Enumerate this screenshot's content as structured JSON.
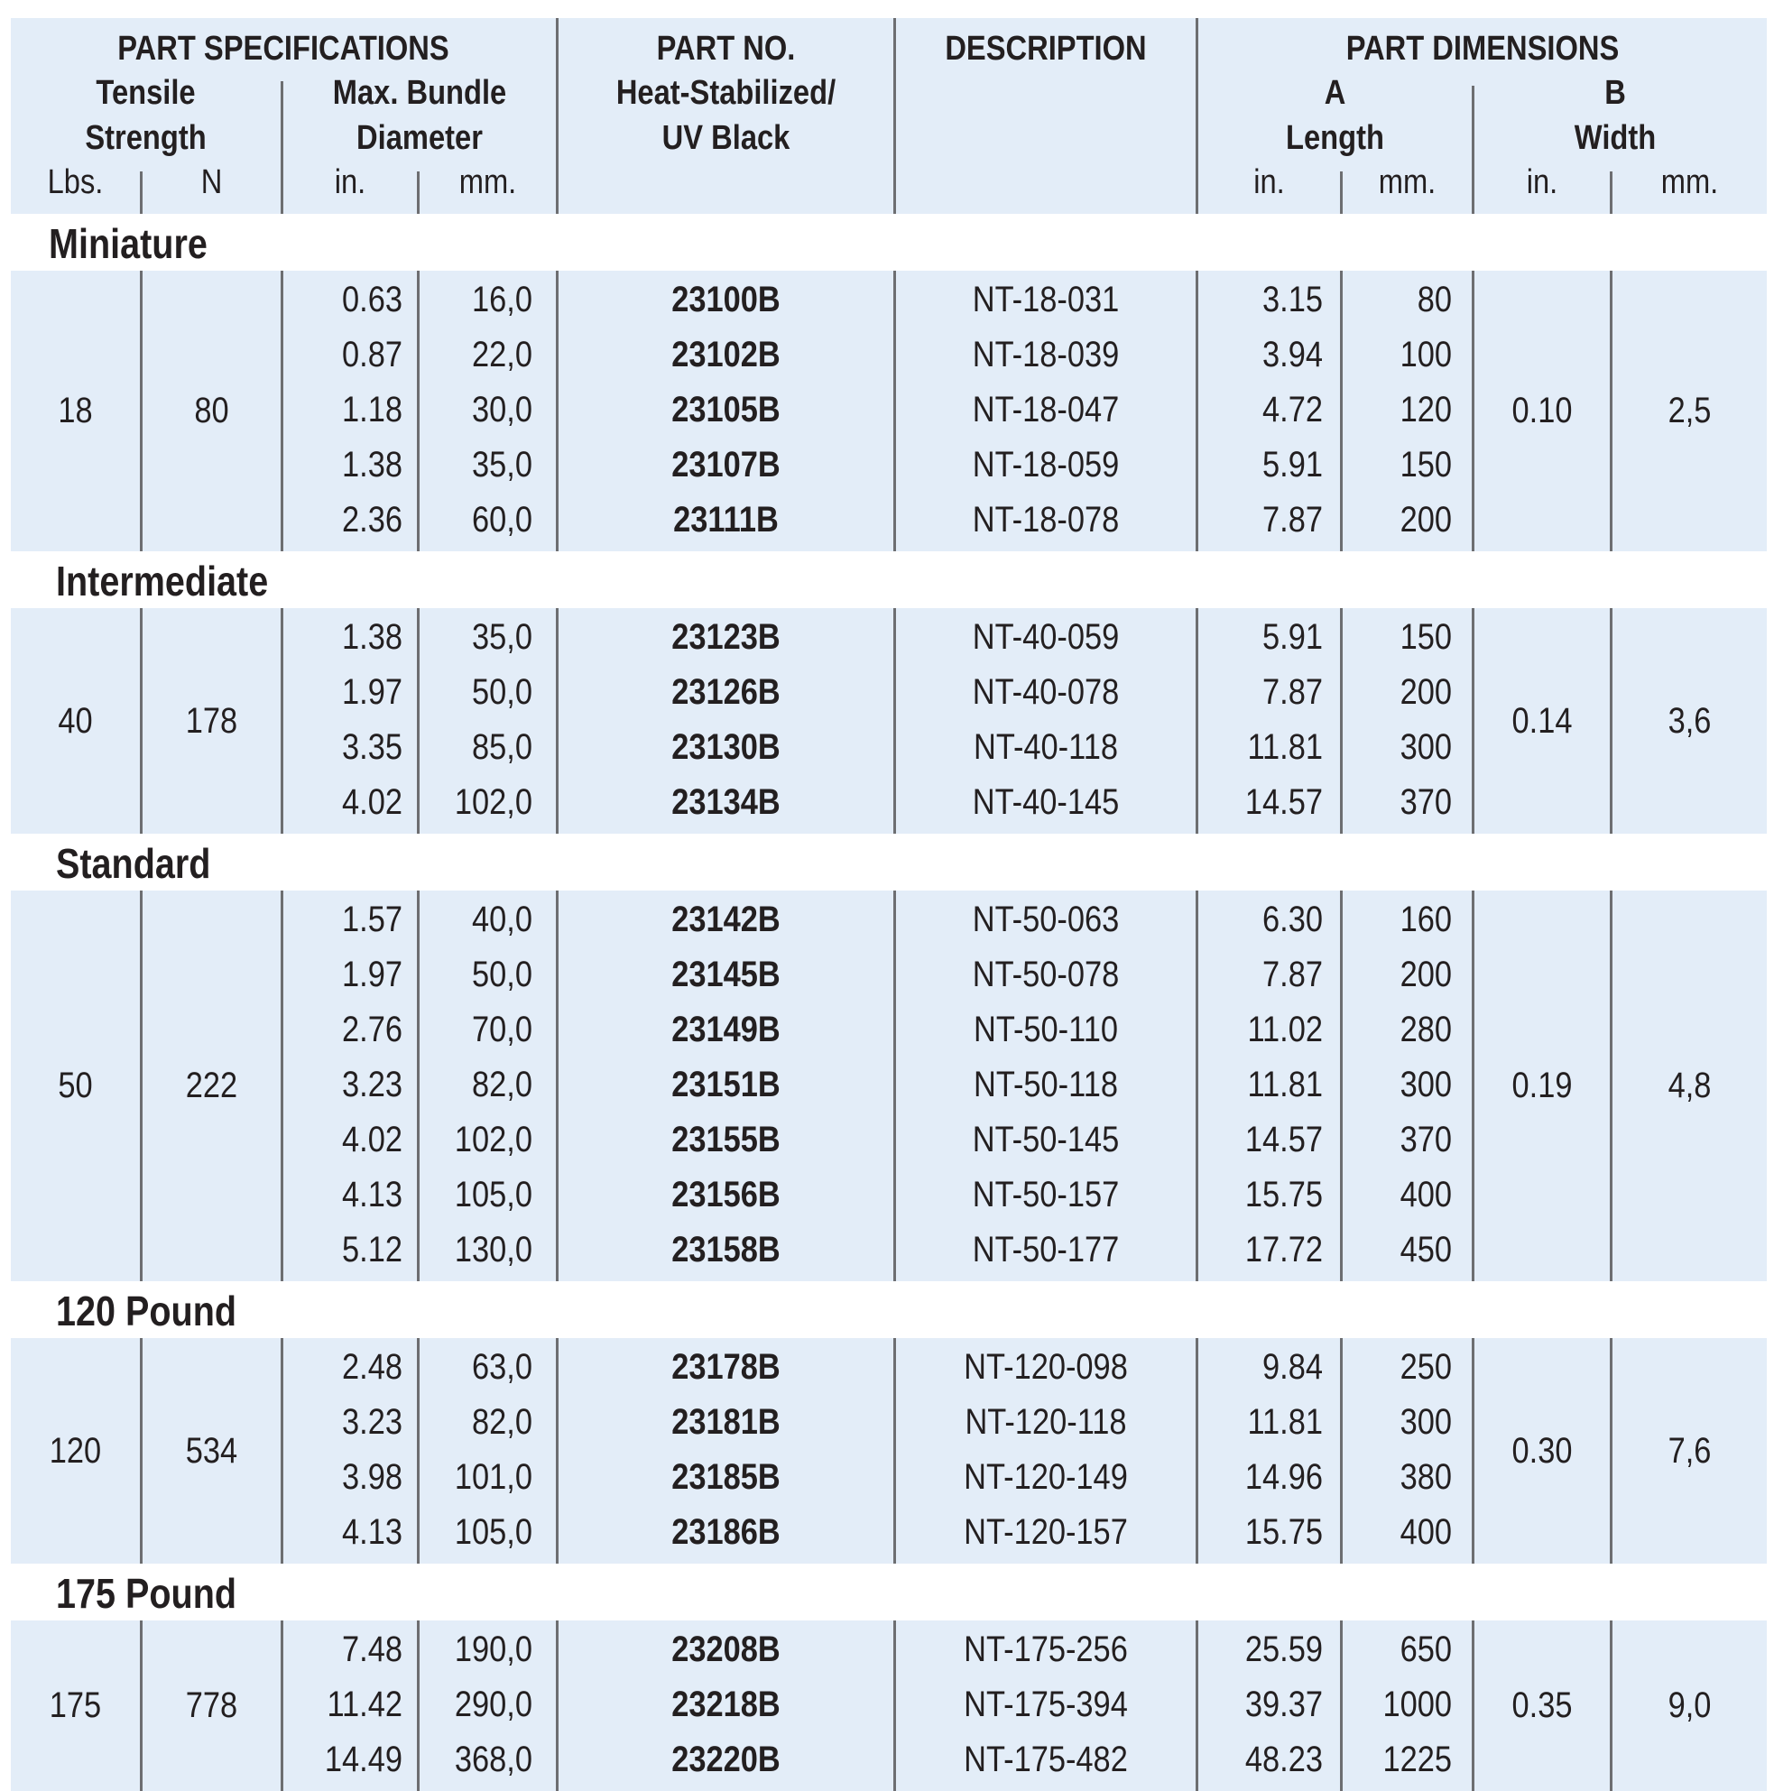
{
  "header": {
    "part_specifications": "PART SPECIFICATIONS",
    "tensile_strength": [
      "Tensile",
      "Strength"
    ],
    "max_bundle_diameter": [
      "Max. Bundle",
      "Diameter"
    ],
    "part_no": [
      "PART NO.",
      "Heat-Stabilized/",
      "UV Black"
    ],
    "description": "DESCRIPTION",
    "part_dimensions": "PART DIMENSIONS",
    "a_label": "A",
    "length": "Length",
    "b_label": "B",
    "width": "Width",
    "units": {
      "lbs": "Lbs.",
      "n": "N",
      "diam_in": "in.",
      "diam_mm": "mm.",
      "len_in": "in.",
      "len_mm": "mm.",
      "wid_in": "in.",
      "wid_mm": "mm."
    }
  },
  "groups": [
    {
      "title": "Miniature",
      "lbs": "18",
      "n": "80",
      "width_in": "0.10",
      "width_mm": "2,5",
      "rows": [
        {
          "diam_in": "0.63",
          "diam_mm": "16,0",
          "part": "23100B",
          "desc": "NT-18-031",
          "len_in": "3.15",
          "len_mm": "80"
        },
        {
          "diam_in": "0.87",
          "diam_mm": "22,0",
          "part": "23102B",
          "desc": "NT-18-039",
          "len_in": "3.94",
          "len_mm": "100"
        },
        {
          "diam_in": "1.18",
          "diam_mm": "30,0",
          "part": "23105B",
          "desc": "NT-18-047",
          "len_in": "4.72",
          "len_mm": "120"
        },
        {
          "diam_in": "1.38",
          "diam_mm": "35,0",
          "part": "23107B",
          "desc": "NT-18-059",
          "len_in": "5.91",
          "len_mm": "150"
        },
        {
          "diam_in": "2.36",
          "diam_mm": "60,0",
          "part": "23111B",
          "desc": "NT-18-078",
          "len_in": "7.87",
          "len_mm": "200"
        }
      ]
    },
    {
      "title": "Intermediate",
      "lbs": "40",
      "n": "178",
      "width_in": "0.14",
      "width_mm": "3,6",
      "rows": [
        {
          "diam_in": "1.38",
          "diam_mm": "35,0",
          "part": "23123B",
          "desc": "NT-40-059",
          "len_in": "5.91",
          "len_mm": "150"
        },
        {
          "diam_in": "1.97",
          "diam_mm": "50,0",
          "part": "23126B",
          "desc": "NT-40-078",
          "len_in": "7.87",
          "len_mm": "200"
        },
        {
          "diam_in": "3.35",
          "diam_mm": "85,0",
          "part": "23130B",
          "desc": "NT-40-118",
          "len_in": "11.81",
          "len_mm": "300"
        },
        {
          "diam_in": "4.02",
          "diam_mm": "102,0",
          "part": "23134B",
          "desc": "NT-40-145",
          "len_in": "14.57",
          "len_mm": "370"
        }
      ]
    },
    {
      "title": "Standard",
      "lbs": "50",
      "n": "222",
      "width_in": "0.19",
      "width_mm": "4,8",
      "rows": [
        {
          "diam_in": "1.57",
          "diam_mm": "40,0",
          "part": "23142B",
          "desc": "NT-50-063",
          "len_in": "6.30",
          "len_mm": "160"
        },
        {
          "diam_in": "1.97",
          "diam_mm": "50,0",
          "part": "23145B",
          "desc": "NT-50-078",
          "len_in": "7.87",
          "len_mm": "200"
        },
        {
          "diam_in": "2.76",
          "diam_mm": "70,0",
          "part": "23149B",
          "desc": "NT-50-110",
          "len_in": "11.02",
          "len_mm": "280"
        },
        {
          "diam_in": "3.23",
          "diam_mm": "82,0",
          "part": "23151B",
          "desc": "NT-50-118",
          "len_in": "11.81",
          "len_mm": "300"
        },
        {
          "diam_in": "4.02",
          "diam_mm": "102,0",
          "part": "23155B",
          "desc": "NT-50-145",
          "len_in": "14.57",
          "len_mm": "370"
        },
        {
          "diam_in": "4.13",
          "diam_mm": "105,0",
          "part": "23156B",
          "desc": "NT-50-157",
          "len_in": "15.75",
          "len_mm": "400"
        },
        {
          "diam_in": "5.12",
          "diam_mm": "130,0",
          "part": "23158B",
          "desc": "NT-50-177",
          "len_in": "17.72",
          "len_mm": "450"
        }
      ]
    },
    {
      "title": "120 Pound",
      "lbs": "120",
      "n": "534",
      "width_in": "0.30",
      "width_mm": "7,6",
      "rows": [
        {
          "diam_in": "2.48",
          "diam_mm": "63,0",
          "part": "23178B",
          "desc": "NT-120-098",
          "len_in": "9.84",
          "len_mm": "250"
        },
        {
          "diam_in": "3.23",
          "diam_mm": "82,0",
          "part": "23181B",
          "desc": "NT-120-118",
          "len_in": "11.81",
          "len_mm": "300"
        },
        {
          "diam_in": "3.98",
          "diam_mm": "101,0",
          "part": "23185B",
          "desc": "NT-120-149",
          "len_in": "14.96",
          "len_mm": "380"
        },
        {
          "diam_in": "4.13",
          "diam_mm": "105,0",
          "part": "23186B",
          "desc": "NT-120-157",
          "len_in": "15.75",
          "len_mm": "400"
        }
      ]
    },
    {
      "title": "175 Pound",
      "lbs": "175",
      "n": "778",
      "width_in": "0.35",
      "width_mm": "9,0",
      "rows": [
        {
          "diam_in": "7.48",
          "diam_mm": "190,0",
          "part": "23208B",
          "desc": "NT-175-256",
          "len_in": "25.59",
          "len_mm": "650"
        },
        {
          "diam_in": "11.42",
          "diam_mm": "290,0",
          "part": "23218B",
          "desc": "NT-175-394",
          "len_in": "39.37",
          "len_mm": "1000"
        },
        {
          "diam_in": "14.49",
          "diam_mm": "368,0",
          "part": "23220B",
          "desc": "NT-175-482",
          "len_in": "48.23",
          "len_mm": "1225"
        }
      ]
    }
  ]
}
